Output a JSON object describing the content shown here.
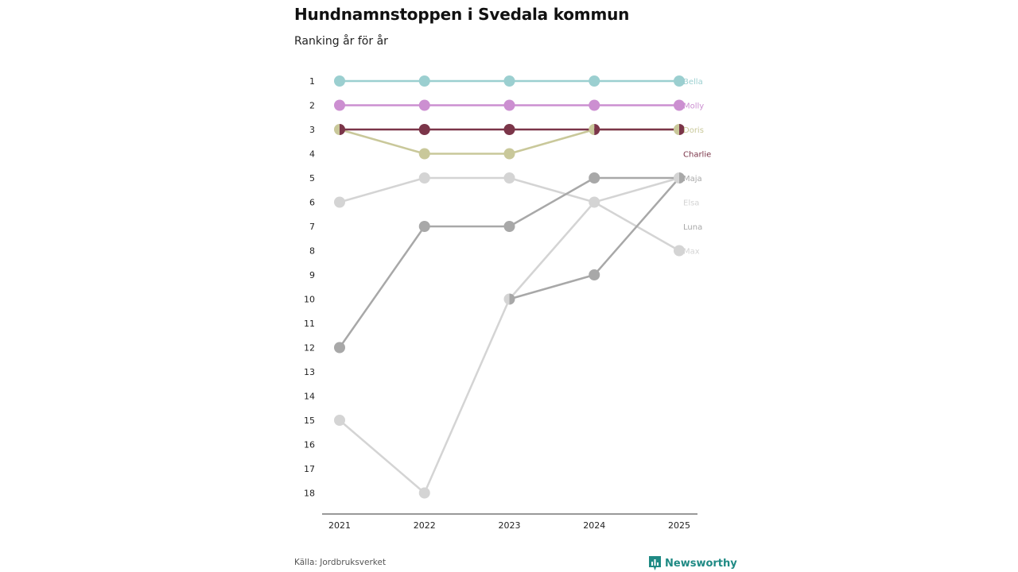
{
  "title": "Hundnamnstoppen i Svedala kommun",
  "subtitle": "Ranking år för år",
  "source": "Källa: Jordbruksverket",
  "brand": "Newsworthy",
  "colors": {
    "accent": "#1f8a84"
  },
  "chart_data": {
    "type": "line",
    "title": "Hundnamnstoppen i Svedala kommun",
    "subtitle": "Ranking år för år",
    "xlabel": "",
    "ylabel": "",
    "categories": [
      "2021",
      "2022",
      "2023",
      "2024",
      "2025"
    ],
    "y_ticks": [
      1,
      2,
      3,
      4,
      5,
      6,
      7,
      8,
      9,
      10,
      11,
      12,
      13,
      14,
      15,
      16,
      17,
      18
    ],
    "ylim": [
      1,
      18
    ],
    "y_reversed": true,
    "grid": false,
    "series": [
      {
        "name": "Elsa",
        "color": "#d4d4d4",
        "values": [
          15,
          18,
          10,
          6,
          5
        ]
      },
      {
        "name": "Max",
        "color": "#d4d4d4",
        "values": [
          6,
          5,
          5,
          6,
          8
        ]
      },
      {
        "name": "Luna",
        "color": "#a8a8a8",
        "values": [
          12,
          7,
          7,
          5,
          5
        ]
      },
      {
        "name": "Maja",
        "color": "#a8a8a8",
        "values": [
          null,
          null,
          10,
          9,
          5
        ]
      },
      {
        "name": "Doris",
        "color": "#c9c89a",
        "values": [
          3,
          4,
          4,
          3,
          3
        ]
      },
      {
        "name": "Charlie",
        "color": "#7b3549",
        "values": [
          3,
          3,
          3,
          3,
          3
        ]
      },
      {
        "name": "Molly",
        "color": "#cc8fd1",
        "values": [
          2,
          2,
          2,
          2,
          2
        ]
      },
      {
        "name": "Bella",
        "color": "#9bcfd0",
        "values": [
          1,
          1,
          1,
          1,
          1
        ]
      }
    ],
    "end_labels": [
      {
        "name": "Bella",
        "rank": 1,
        "color": "#9bcfd0"
      },
      {
        "name": "Molly",
        "rank": 2,
        "color": "#cc8fd1"
      },
      {
        "name": "Doris",
        "rank": 3,
        "color": "#c9c89a"
      },
      {
        "name": "Charlie",
        "rank": 4,
        "color": "#7b3549"
      },
      {
        "name": "Maja",
        "rank": 5,
        "color": "#a8a8a8"
      },
      {
        "name": "Elsa",
        "rank": 6,
        "color": "#d4d4d4"
      },
      {
        "name": "Luna",
        "rank": 7,
        "color": "#a8a8a8"
      },
      {
        "name": "Max",
        "rank": 8,
        "color": "#d4d4d4"
      }
    ]
  }
}
